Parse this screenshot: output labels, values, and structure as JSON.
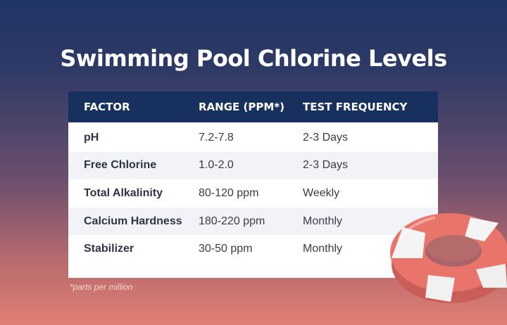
{
  "title": "Swimming Pool Chlorine Levels",
  "table": {
    "headers": [
      "FACTOR",
      "RANGE (PPM*)",
      "TEST FREQUENCY"
    ],
    "rows": [
      {
        "factor": "pH",
        "range": "7.2-7.8",
        "frequency": "2-3 Days"
      },
      {
        "factor": "Free Chlorine",
        "range": "1.0-2.0",
        "frequency": "2-3 Days"
      },
      {
        "factor": "Total Alkalinity",
        "range": "80-120 ppm",
        "frequency": "Weekly"
      },
      {
        "factor": "Calcium Hardness",
        "range": "180-220 ppm",
        "frequency": "Monthly"
      },
      {
        "factor": "Stabilizer",
        "range": "30-50 ppm",
        "frequency": "Monthly"
      }
    ]
  },
  "footnote": "*parts per million",
  "icons": {
    "decoration": "life-ring-icon"
  },
  "colors": {
    "header_bg": "#18305e",
    "ring_red": "#e8746a",
    "ring_white": "#f4f4f4"
  }
}
